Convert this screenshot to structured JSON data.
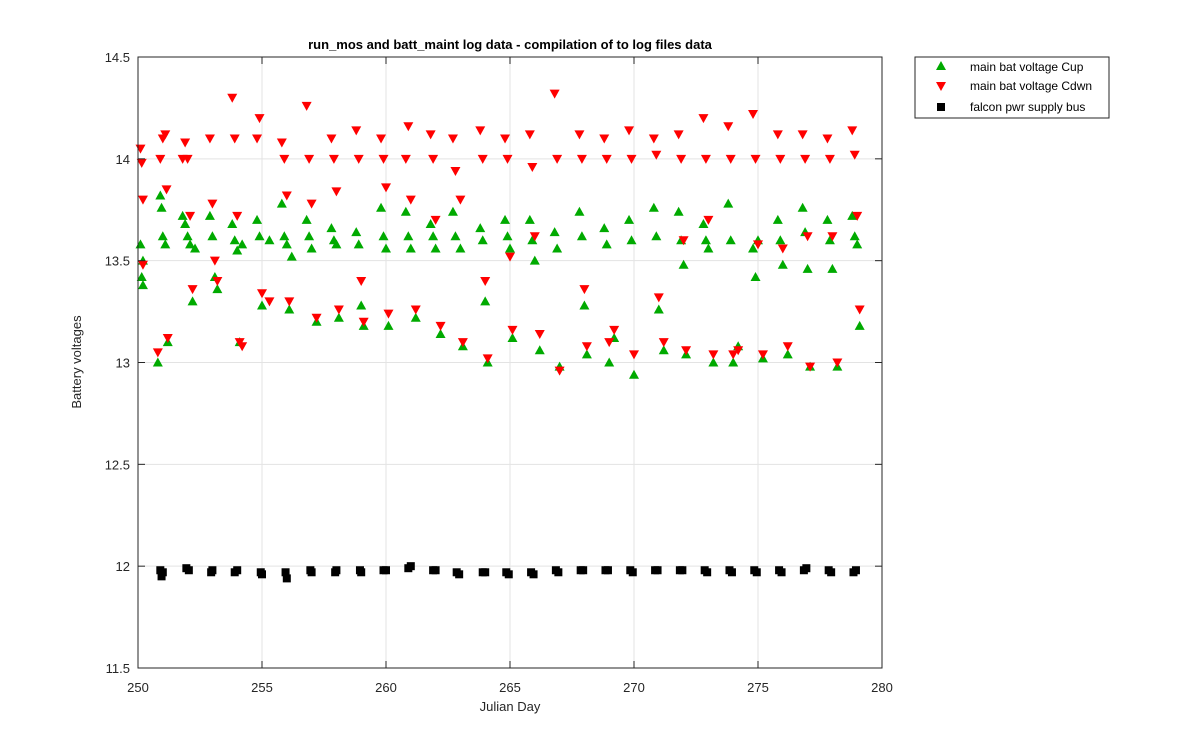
{
  "chart_data": {
    "type": "scatter",
    "title": "run_mos and batt_maint log data - compilation of to log files data",
    "xlabel": "Julian Day",
    "ylabel": "Battery voltages",
    "xlim": [
      250,
      280
    ],
    "ylim": [
      11.5,
      14.5
    ],
    "xticks": [
      "250",
      "255",
      "260",
      "265",
      "270",
      "275",
      "280"
    ],
    "yticks": [
      "11.5",
      "12",
      "12.5",
      "13",
      "13.5",
      "14",
      "14.5"
    ],
    "grid": true,
    "legend_position": "outside-top-right",
    "series": [
      {
        "name": "main bat voltage Cup",
        "marker": "triangle-up",
        "color": "#00aa00",
        "points": [
          [
            250.1,
            13.58
          ],
          [
            250.2,
            13.5
          ],
          [
            250.15,
            13.42
          ],
          [
            250.2,
            13.38
          ],
          [
            250.8,
            13.0
          ],
          [
            250.9,
            13.82
          ],
          [
            250.95,
            13.76
          ],
          [
            251.0,
            13.62
          ],
          [
            251.1,
            13.58
          ],
          [
            251.2,
            13.1
          ],
          [
            251.8,
            13.72
          ],
          [
            251.9,
            13.68
          ],
          [
            252.0,
            13.62
          ],
          [
            252.1,
            13.58
          ],
          [
            252.2,
            13.3
          ],
          [
            252.3,
            13.56
          ],
          [
            252.9,
            13.72
          ],
          [
            253.0,
            13.62
          ],
          [
            253.1,
            13.42
          ],
          [
            253.2,
            13.36
          ],
          [
            253.8,
            13.68
          ],
          [
            253.9,
            13.6
          ],
          [
            254.0,
            13.55
          ],
          [
            254.1,
            13.1
          ],
          [
            254.2,
            13.58
          ],
          [
            254.8,
            13.7
          ],
          [
            254.9,
            13.62
          ],
          [
            255.0,
            13.28
          ],
          [
            255.3,
            13.6
          ],
          [
            255.8,
            13.78
          ],
          [
            255.9,
            13.62
          ],
          [
            256.0,
            13.58
          ],
          [
            256.1,
            13.26
          ],
          [
            256.2,
            13.52
          ],
          [
            256.8,
            13.7
          ],
          [
            256.9,
            13.62
          ],
          [
            257.0,
            13.56
          ],
          [
            257.2,
            13.2
          ],
          [
            257.8,
            13.66
          ],
          [
            257.9,
            13.6
          ],
          [
            258.0,
            13.58
          ],
          [
            258.1,
            13.22
          ],
          [
            258.8,
            13.64
          ],
          [
            258.9,
            13.58
          ],
          [
            259.0,
            13.28
          ],
          [
            259.1,
            13.18
          ],
          [
            259.8,
            13.76
          ],
          [
            259.9,
            13.62
          ],
          [
            260.0,
            13.56
          ],
          [
            260.1,
            13.18
          ],
          [
            260.8,
            13.74
          ],
          [
            260.9,
            13.62
          ],
          [
            261.0,
            13.56
          ],
          [
            261.2,
            13.22
          ],
          [
            261.8,
            13.68
          ],
          [
            261.9,
            13.62
          ],
          [
            262.0,
            13.56
          ],
          [
            262.2,
            13.14
          ],
          [
            262.7,
            13.74
          ],
          [
            262.8,
            13.62
          ],
          [
            263.0,
            13.56
          ],
          [
            263.1,
            13.08
          ],
          [
            263.8,
            13.66
          ],
          [
            263.9,
            13.6
          ],
          [
            264.0,
            13.3
          ],
          [
            264.1,
            13.0
          ],
          [
            264.8,
            13.7
          ],
          [
            264.9,
            13.62
          ],
          [
            265.0,
            13.56
          ],
          [
            265.1,
            13.12
          ],
          [
            265.8,
            13.7
          ],
          [
            265.9,
            13.6
          ],
          [
            266.0,
            13.5
          ],
          [
            266.2,
            13.06
          ],
          [
            266.8,
            13.64
          ],
          [
            266.9,
            13.56
          ],
          [
            267.0,
            12.98
          ],
          [
            267.8,
            13.74
          ],
          [
            267.9,
            13.62
          ],
          [
            268.0,
            13.28
          ],
          [
            268.1,
            13.04
          ],
          [
            268.8,
            13.66
          ],
          [
            268.9,
            13.58
          ],
          [
            269.0,
            13.0
          ],
          [
            269.2,
            13.12
          ],
          [
            269.8,
            13.7
          ],
          [
            269.9,
            13.6
          ],
          [
            270.0,
            12.94
          ],
          [
            270.8,
            13.76
          ],
          [
            270.9,
            13.62
          ],
          [
            271.0,
            13.26
          ],
          [
            271.2,
            13.06
          ],
          [
            271.8,
            13.74
          ],
          [
            271.9,
            13.6
          ],
          [
            272.0,
            13.48
          ],
          [
            272.1,
            13.04
          ],
          [
            272.8,
            13.68
          ],
          [
            272.9,
            13.6
          ],
          [
            273.0,
            13.56
          ],
          [
            273.2,
            13.0
          ],
          [
            273.8,
            13.78
          ],
          [
            273.9,
            13.6
          ],
          [
            274.0,
            13.0
          ],
          [
            274.2,
            13.08
          ],
          [
            274.8,
            13.56
          ],
          [
            274.9,
            13.42
          ],
          [
            275.0,
            13.6
          ],
          [
            275.2,
            13.02
          ],
          [
            275.8,
            13.7
          ],
          [
            275.9,
            13.6
          ],
          [
            276.0,
            13.48
          ],
          [
            276.2,
            13.04
          ],
          [
            276.8,
            13.76
          ],
          [
            276.9,
            13.64
          ],
          [
            277.0,
            13.46
          ],
          [
            277.1,
            12.98
          ],
          [
            277.8,
            13.7
          ],
          [
            277.9,
            13.6
          ],
          [
            278.0,
            13.46
          ],
          [
            278.2,
            12.98
          ],
          [
            278.8,
            13.72
          ],
          [
            278.9,
            13.62
          ],
          [
            279.0,
            13.58
          ],
          [
            279.1,
            13.18
          ]
        ]
      },
      {
        "name": "main bat voltage Cdwn",
        "marker": "triangle-down",
        "color": "#ff0000",
        "points": [
          [
            250.1,
            14.05
          ],
          [
            250.15,
            13.98
          ],
          [
            250.2,
            13.8
          ],
          [
            250.2,
            13.48
          ],
          [
            250.8,
            13.05
          ],
          [
            250.9,
            14.0
          ],
          [
            251.0,
            14.1
          ],
          [
            251.1,
            14.12
          ],
          [
            251.15,
            13.85
          ],
          [
            251.2,
            13.12
          ],
          [
            251.8,
            14.0
          ],
          [
            251.9,
            14.08
          ],
          [
            252.0,
            14.0
          ],
          [
            252.1,
            13.72
          ],
          [
            252.2,
            13.36
          ],
          [
            252.9,
            14.1
          ],
          [
            253.0,
            13.78
          ],
          [
            253.1,
            13.5
          ],
          [
            253.2,
            13.4
          ],
          [
            253.8,
            14.3
          ],
          [
            253.9,
            14.1
          ],
          [
            254.0,
            13.72
          ],
          [
            254.1,
            13.1
          ],
          [
            254.2,
            13.08
          ],
          [
            254.8,
            14.1
          ],
          [
            254.9,
            14.2
          ],
          [
            255.0,
            13.34
          ],
          [
            255.3,
            13.3
          ],
          [
            255.8,
            14.08
          ],
          [
            255.9,
            14.0
          ],
          [
            256.0,
            13.82
          ],
          [
            256.1,
            13.3
          ],
          [
            256.8,
            14.26
          ],
          [
            256.9,
            14.0
          ],
          [
            257.0,
            13.78
          ],
          [
            257.2,
            13.22
          ],
          [
            257.8,
            14.1
          ],
          [
            257.9,
            14.0
          ],
          [
            258.0,
            13.84
          ],
          [
            258.1,
            13.26
          ],
          [
            258.8,
            14.14
          ],
          [
            258.9,
            14.0
          ],
          [
            259.0,
            13.4
          ],
          [
            259.1,
            13.2
          ],
          [
            259.8,
            14.1
          ],
          [
            259.9,
            14.0
          ],
          [
            260.0,
            13.86
          ],
          [
            260.1,
            13.24
          ],
          [
            260.8,
            14.0
          ],
          [
            260.9,
            14.16
          ],
          [
            261.0,
            13.8
          ],
          [
            261.2,
            13.26
          ],
          [
            261.8,
            14.12
          ],
          [
            261.9,
            14.0
          ],
          [
            262.0,
            13.7
          ],
          [
            262.2,
            13.18
          ],
          [
            262.7,
            14.1
          ],
          [
            262.8,
            13.94
          ],
          [
            263.0,
            13.8
          ],
          [
            263.1,
            13.1
          ],
          [
            263.8,
            14.14
          ],
          [
            263.9,
            14.0
          ],
          [
            264.0,
            13.4
          ],
          [
            264.1,
            13.02
          ],
          [
            264.8,
            14.1
          ],
          [
            264.9,
            14.0
          ],
          [
            265.0,
            13.52
          ],
          [
            265.1,
            13.16
          ],
          [
            265.8,
            14.12
          ],
          [
            265.9,
            13.96
          ],
          [
            266.0,
            13.62
          ],
          [
            266.2,
            13.14
          ],
          [
            266.8,
            14.32
          ],
          [
            266.9,
            14.0
          ],
          [
            267.0,
            12.96
          ],
          [
            267.8,
            14.12
          ],
          [
            267.9,
            14.0
          ],
          [
            268.0,
            13.36
          ],
          [
            268.1,
            13.08
          ],
          [
            268.8,
            14.1
          ],
          [
            268.9,
            14.0
          ],
          [
            269.0,
            13.1
          ],
          [
            269.2,
            13.16
          ],
          [
            269.8,
            14.14
          ],
          [
            269.9,
            14.0
          ],
          [
            270.0,
            13.04
          ],
          [
            270.8,
            14.1
          ],
          [
            270.9,
            14.02
          ],
          [
            271.0,
            13.32
          ],
          [
            271.2,
            13.1
          ],
          [
            271.8,
            14.12
          ],
          [
            271.9,
            14.0
          ],
          [
            272.0,
            13.6
          ],
          [
            272.1,
            13.06
          ],
          [
            272.8,
            14.2
          ],
          [
            272.9,
            14.0
          ],
          [
            273.0,
            13.7
          ],
          [
            273.2,
            13.04
          ],
          [
            273.8,
            14.16
          ],
          [
            273.9,
            14.0
          ],
          [
            274.0,
            13.04
          ],
          [
            274.2,
            13.06
          ],
          [
            274.8,
            14.22
          ],
          [
            274.9,
            14.0
          ],
          [
            275.0,
            13.58
          ],
          [
            275.2,
            13.04
          ],
          [
            275.8,
            14.12
          ],
          [
            275.9,
            14.0
          ],
          [
            276.0,
            13.56
          ],
          [
            276.2,
            13.08
          ],
          [
            276.8,
            14.12
          ],
          [
            276.9,
            14.0
          ],
          [
            277.0,
            13.62
          ],
          [
            277.1,
            12.98
          ],
          [
            277.8,
            14.1
          ],
          [
            277.9,
            14.0
          ],
          [
            278.0,
            13.62
          ],
          [
            278.2,
            13.0
          ],
          [
            278.8,
            14.14
          ],
          [
            278.9,
            14.02
          ],
          [
            279.0,
            13.72
          ],
          [
            279.1,
            13.26
          ]
        ]
      },
      {
        "name": "falcon pwr supply bus",
        "marker": "square",
        "color": "#000000",
        "points": [
          [
            250.9,
            11.98
          ],
          [
            250.95,
            11.95
          ],
          [
            251.0,
            11.97
          ],
          [
            251.95,
            11.99
          ],
          [
            252.05,
            11.98
          ],
          [
            252.95,
            11.97
          ],
          [
            253.0,
            11.98
          ],
          [
            253.9,
            11.97
          ],
          [
            254.0,
            11.98
          ],
          [
            254.95,
            11.97
          ],
          [
            255.0,
            11.96
          ],
          [
            255.95,
            11.97
          ],
          [
            256.0,
            11.94
          ],
          [
            256.95,
            11.98
          ],
          [
            257.0,
            11.97
          ],
          [
            257.95,
            11.97
          ],
          [
            258.0,
            11.98
          ],
          [
            258.95,
            11.98
          ],
          [
            259.0,
            11.97
          ],
          [
            259.9,
            11.98
          ],
          [
            260.0,
            11.98
          ],
          [
            260.9,
            11.99
          ],
          [
            261.0,
            12.0
          ],
          [
            261.9,
            11.98
          ],
          [
            262.0,
            11.98
          ],
          [
            262.85,
            11.97
          ],
          [
            262.95,
            11.96
          ],
          [
            263.9,
            11.97
          ],
          [
            264.0,
            11.97
          ],
          [
            264.85,
            11.97
          ],
          [
            264.95,
            11.96
          ],
          [
            265.85,
            11.97
          ],
          [
            265.95,
            11.96
          ],
          [
            266.85,
            11.98
          ],
          [
            266.95,
            11.97
          ],
          [
            267.85,
            11.98
          ],
          [
            267.95,
            11.98
          ],
          [
            268.85,
            11.98
          ],
          [
            268.95,
            11.98
          ],
          [
            269.85,
            11.98
          ],
          [
            269.95,
            11.97
          ],
          [
            270.85,
            11.98
          ],
          [
            270.95,
            11.98
          ],
          [
            271.85,
            11.98
          ],
          [
            271.95,
            11.98
          ],
          [
            272.85,
            11.98
          ],
          [
            272.95,
            11.97
          ],
          [
            273.85,
            11.98
          ],
          [
            273.95,
            11.97
          ],
          [
            274.85,
            11.98
          ],
          [
            274.95,
            11.97
          ],
          [
            275.85,
            11.98
          ],
          [
            275.95,
            11.97
          ],
          [
            276.85,
            11.98
          ],
          [
            276.95,
            11.99
          ],
          [
            277.85,
            11.98
          ],
          [
            277.95,
            11.97
          ],
          [
            278.85,
            11.97
          ],
          [
            278.95,
            11.98
          ]
        ]
      }
    ]
  }
}
